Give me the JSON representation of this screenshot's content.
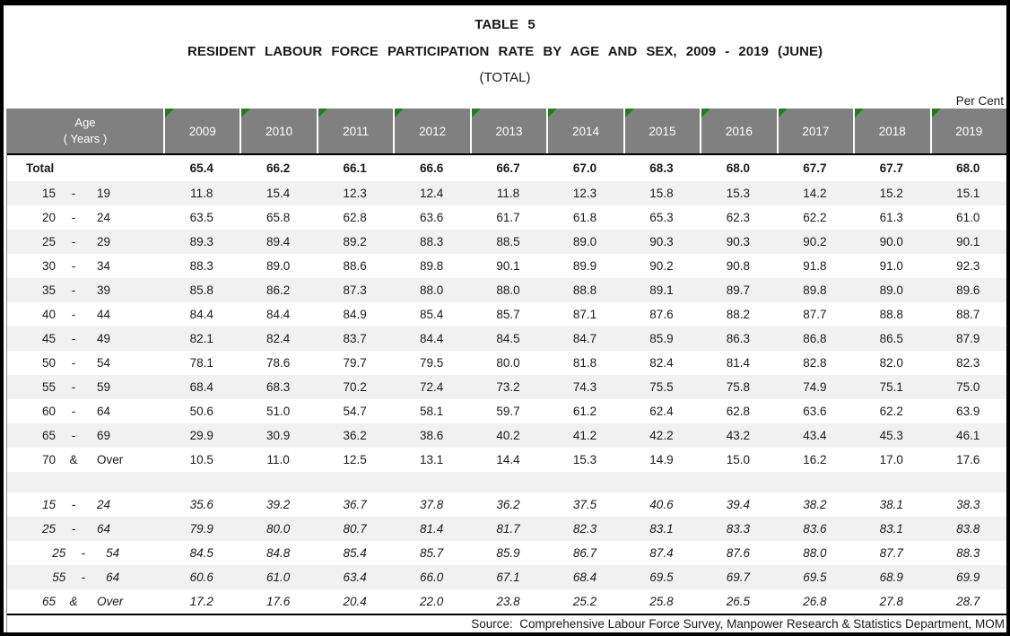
{
  "page": {
    "table_number": "TABLE 5",
    "title": "RESIDENT LABOUR FORCE PARTICIPATION RATE BY AGE AND SEX, 2009 - 2019 (JUNE)",
    "subtitle": "(TOTAL)",
    "unit_label": "Per Cent",
    "source": "Source:  Comprehensive Labour Force Survey, Manpower Research & Statistics Department, MOM"
  },
  "colors": {
    "header_bg": "#808080",
    "header_text": "#ffffff",
    "stripe": "#f1f1f1",
    "triangle_green": "#1e7e1e",
    "border": "#000000"
  },
  "table": {
    "age_header_line1": "Age",
    "age_header_line2": "( Years )",
    "years": [
      "2009",
      "2010",
      "2011",
      "2012",
      "2013",
      "2014",
      "2015",
      "2016",
      "2017",
      "2018",
      "2019"
    ],
    "rows": [
      {
        "label_left": "Total",
        "bold": true,
        "shaded": false,
        "values": [
          "65.4",
          "66.2",
          "66.1",
          "66.6",
          "66.7",
          "67.0",
          "68.3",
          "68.0",
          "67.7",
          "67.7",
          "68.0"
        ]
      },
      {
        "a": "15",
        "sep": "-",
        "b": "19",
        "shaded": true,
        "values": [
          "11.8",
          "15.4",
          "12.3",
          "12.4",
          "11.8",
          "12.3",
          "15.8",
          "15.3",
          "14.2",
          "15.2",
          "15.1"
        ]
      },
      {
        "a": "20",
        "sep": "-",
        "b": "24",
        "shaded": false,
        "values": [
          "63.5",
          "65.8",
          "62.8",
          "63.6",
          "61.7",
          "61.8",
          "65.3",
          "62.3",
          "62.2",
          "61.3",
          "61.0"
        ]
      },
      {
        "a": "25",
        "sep": "-",
        "b": "29",
        "shaded": true,
        "values": [
          "89.3",
          "89.4",
          "89.2",
          "88.3",
          "88.5",
          "89.0",
          "90.3",
          "90.3",
          "90.2",
          "90.0",
          "90.1"
        ]
      },
      {
        "a": "30",
        "sep": "-",
        "b": "34",
        "shaded": false,
        "values": [
          "88.3",
          "89.0",
          "88.6",
          "89.8",
          "90.1",
          "89.9",
          "90.2",
          "90.8",
          "91.8",
          "91.0",
          "92.3"
        ]
      },
      {
        "a": "35",
        "sep": "-",
        "b": "39",
        "shaded": true,
        "values": [
          "85.8",
          "86.2",
          "87.3",
          "88.0",
          "88.0",
          "88.8",
          "89.1",
          "89.7",
          "89.8",
          "89.0",
          "89.6"
        ]
      },
      {
        "a": "40",
        "sep": "-",
        "b": "44",
        "shaded": false,
        "values": [
          "84.4",
          "84.4",
          "84.9",
          "85.4",
          "85.7",
          "87.1",
          "87.6",
          "88.2",
          "87.7",
          "88.8",
          "88.7"
        ]
      },
      {
        "a": "45",
        "sep": "-",
        "b": "49",
        "shaded": true,
        "values": [
          "82.1",
          "82.4",
          "83.7",
          "84.4",
          "84.5",
          "84.7",
          "85.9",
          "86.3",
          "86.8",
          "86.5",
          "87.9"
        ]
      },
      {
        "a": "50",
        "sep": "-",
        "b": "54",
        "shaded": false,
        "values": [
          "78.1",
          "78.6",
          "79.7",
          "79.5",
          "80.0",
          "81.8",
          "82.4",
          "81.4",
          "82.8",
          "82.0",
          "82.3"
        ]
      },
      {
        "a": "55",
        "sep": "-",
        "b": "59",
        "shaded": true,
        "values": [
          "68.4",
          "68.3",
          "70.2",
          "72.4",
          "73.2",
          "74.3",
          "75.5",
          "75.8",
          "74.9",
          "75.1",
          "75.0"
        ]
      },
      {
        "a": "60",
        "sep": "-",
        "b": "64",
        "shaded": false,
        "values": [
          "50.6",
          "51.0",
          "54.7",
          "58.1",
          "59.7",
          "61.2",
          "62.4",
          "62.8",
          "63.6",
          "62.2",
          "63.9"
        ]
      },
      {
        "a": "65",
        "sep": "-",
        "b": "69",
        "shaded": true,
        "values": [
          "29.9",
          "30.9",
          "36.2",
          "38.6",
          "40.2",
          "41.2",
          "42.2",
          "43.2",
          "43.4",
          "45.3",
          "46.1"
        ]
      },
      {
        "a": "70",
        "sep": "&",
        "b": "Over",
        "shaded": false,
        "values": [
          "10.5",
          "11.0",
          "12.5",
          "13.1",
          "14.4",
          "15.3",
          "14.9",
          "15.0",
          "16.2",
          "17.0",
          "17.6"
        ]
      },
      {
        "spacer": true
      },
      {
        "a": "15",
        "sep": "-",
        "b": "24",
        "italic": true,
        "shaded": false,
        "values": [
          "35.6",
          "39.2",
          "36.7",
          "37.8",
          "36.2",
          "37.5",
          "40.6",
          "39.4",
          "38.2",
          "38.1",
          "38.3"
        ]
      },
      {
        "a": "25",
        "sep": "-",
        "b": "64",
        "italic": true,
        "shaded": true,
        "values": [
          "79.9",
          "80.0",
          "80.7",
          "81.4",
          "81.7",
          "82.3",
          "83.1",
          "83.3",
          "83.6",
          "83.1",
          "83.8"
        ]
      },
      {
        "a": "25",
        "sep": "-",
        "b": "54",
        "italic": true,
        "indent": true,
        "shaded": false,
        "values": [
          "84.5",
          "84.8",
          "85.4",
          "85.7",
          "85.9",
          "86.7",
          "87.4",
          "87.6",
          "88.0",
          "87.7",
          "88.3"
        ]
      },
      {
        "a": "55",
        "sep": "-",
        "b": "64",
        "italic": true,
        "indent": true,
        "shaded": true,
        "values": [
          "60.6",
          "61.0",
          "63.4",
          "66.0",
          "67.1",
          "68.4",
          "69.5",
          "69.7",
          "69.5",
          "68.9",
          "69.9"
        ]
      },
      {
        "a": "65",
        "sep": "&",
        "b": "Over",
        "italic": true,
        "shaded": false,
        "values": [
          "17.2",
          "17.6",
          "20.4",
          "22.0",
          "23.8",
          "25.2",
          "25.8",
          "26.5",
          "26.8",
          "27.8",
          "28.7"
        ]
      }
    ]
  }
}
